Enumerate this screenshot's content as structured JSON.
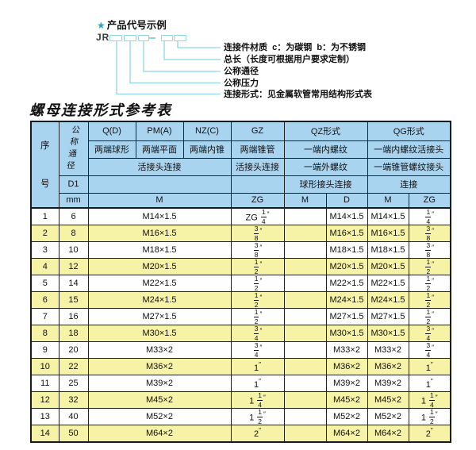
{
  "colors": {
    "header_bg": "#a9d4f0",
    "row_alt_bg": "#f6f2a6",
    "table_border": "#1a1a1a",
    "connector": "#8fd6e4",
    "star": "#1fa6d9",
    "text": "#111111"
  },
  "diagram": {
    "star": "★",
    "heading": "产品代号示例",
    "prefix": "JR",
    "labels": [
      "连接件材质  c：为碳钢  b：为不锈钢",
      "总长（长度可根据用户要求定制）",
      "公称通径",
      "公称压力",
      "连接形式：见金属软管常用结构形式表"
    ]
  },
  "table_title": "螺母连接形式参考表",
  "table": {
    "header": {
      "seq": "序号",
      "dn": "公称通径",
      "d1": "D1",
      "mm": "mm",
      "col_q": "Q(D)",
      "col_pm": "PM(A)",
      "col_nz": "NZ(C)",
      "col_gz": "GZ",
      "col_qz": "QZ形式",
      "col_qg": "QG形式",
      "q_desc": "两端球形",
      "pm_desc": "两端平面",
      "nz_desc": "两端内锥",
      "gz_desc": "两端锥管",
      "qz_desc1": "一端内螺纹",
      "qg_desc1": "一端内螺纹活接头",
      "union_conn": "活接头连接",
      "gz_conn": "活接头连接",
      "qz_desc2": "一端外螺纹",
      "qg_desc2": "一端锥管螺纹接头",
      "qz_conn": "球形接头连接",
      "qg_conn": "连接",
      "m_label": "M",
      "zg_label": "ZG",
      "qz_m_label": "M",
      "qz_d_label": "D",
      "qg_m_label": "M",
      "qg_zg_label": "ZG"
    },
    "rows": [
      {
        "seq": "1",
        "dn": "6",
        "m": "M14×1.5",
        "zg": "ZG 1/4″",
        "qz_m": "",
        "qz_d": "M14×1.5",
        "qg_m": "M14×1.5",
        "qg_zg": "1/4″"
      },
      {
        "seq": "2",
        "dn": "8",
        "m": "M16×1.5",
        "zg": "3/8″",
        "qz_m": "",
        "qz_d": "M16×1.5",
        "qg_m": "M16×1.5",
        "qg_zg": "3/8″"
      },
      {
        "seq": "3",
        "dn": "10",
        "m": "M18×1.5",
        "zg": "3/8″",
        "qz_m": "",
        "qz_d": "M18×1.5",
        "qg_m": "M18×1.5",
        "qg_zg": "3/8″"
      },
      {
        "seq": "4",
        "dn": "12",
        "m": "M20×1.5",
        "zg": "1/2″",
        "qz_m": "",
        "qz_d": "M20×1.5",
        "qg_m": "M20×1.5",
        "qg_zg": "1/2″"
      },
      {
        "seq": "5",
        "dn": "14",
        "m": "M22×1.5",
        "zg": "1/2″",
        "qz_m": "",
        "qz_d": "M22×1.5",
        "qg_m": "M22×1.5",
        "qg_zg": "1/2″"
      },
      {
        "seq": "6",
        "dn": "15",
        "m": "M24×1.5",
        "zg": "1/2″",
        "qz_m": "",
        "qz_d": "M24×1.5",
        "qg_m": "M24×1.5",
        "qg_zg": "1/2″"
      },
      {
        "seq": "7",
        "dn": "16",
        "m": "M27×1.5",
        "zg": "1/2″",
        "qz_m": "",
        "qz_d": "M27×1.5",
        "qg_m": "M27×1.5",
        "qg_zg": "1/2″"
      },
      {
        "seq": "8",
        "dn": "18",
        "m": "M30×1.5",
        "zg": "3/4″",
        "qz_m": "",
        "qz_d": "M30×1.5",
        "qg_m": "M30×1.5",
        "qg_zg": "3/4″"
      },
      {
        "seq": "9",
        "dn": "20",
        "m": "M33×2",
        "zg": "3/4″",
        "qz_m": "",
        "qz_d": "M33×2",
        "qg_m": "M33×2",
        "qg_zg": "3/4″"
      },
      {
        "seq": "10",
        "dn": "22",
        "m": "M36×2",
        "zg": "1″",
        "qz_m": "",
        "qz_d": "M36×2",
        "qg_m": "M36×2",
        "qg_zg": "1″"
      },
      {
        "seq": "11",
        "dn": "25",
        "m": "M39×2",
        "zg": "1″",
        "qz_m": "",
        "qz_d": "M39×2",
        "qg_m": "M39×2",
        "qg_zg": "1″"
      },
      {
        "seq": "12",
        "dn": "32",
        "m": "M45×2",
        "zg": "1 1/4″",
        "qz_m": "",
        "qz_d": "M45×2",
        "qg_m": "M45×2",
        "qg_zg": "1 1/4″"
      },
      {
        "seq": "13",
        "dn": "40",
        "m": "M52×2",
        "zg": "1 1/2″",
        "qz_m": "",
        "qz_d": "M52×2",
        "qg_m": "M52×2",
        "qg_zg": "1 1/2″"
      },
      {
        "seq": "14",
        "dn": "50",
        "m": "M64×2",
        "zg": "2″",
        "qz_m": "",
        "qz_d": "M64×2",
        "qg_m": "M64×2",
        "qg_zg": "2″"
      }
    ]
  }
}
